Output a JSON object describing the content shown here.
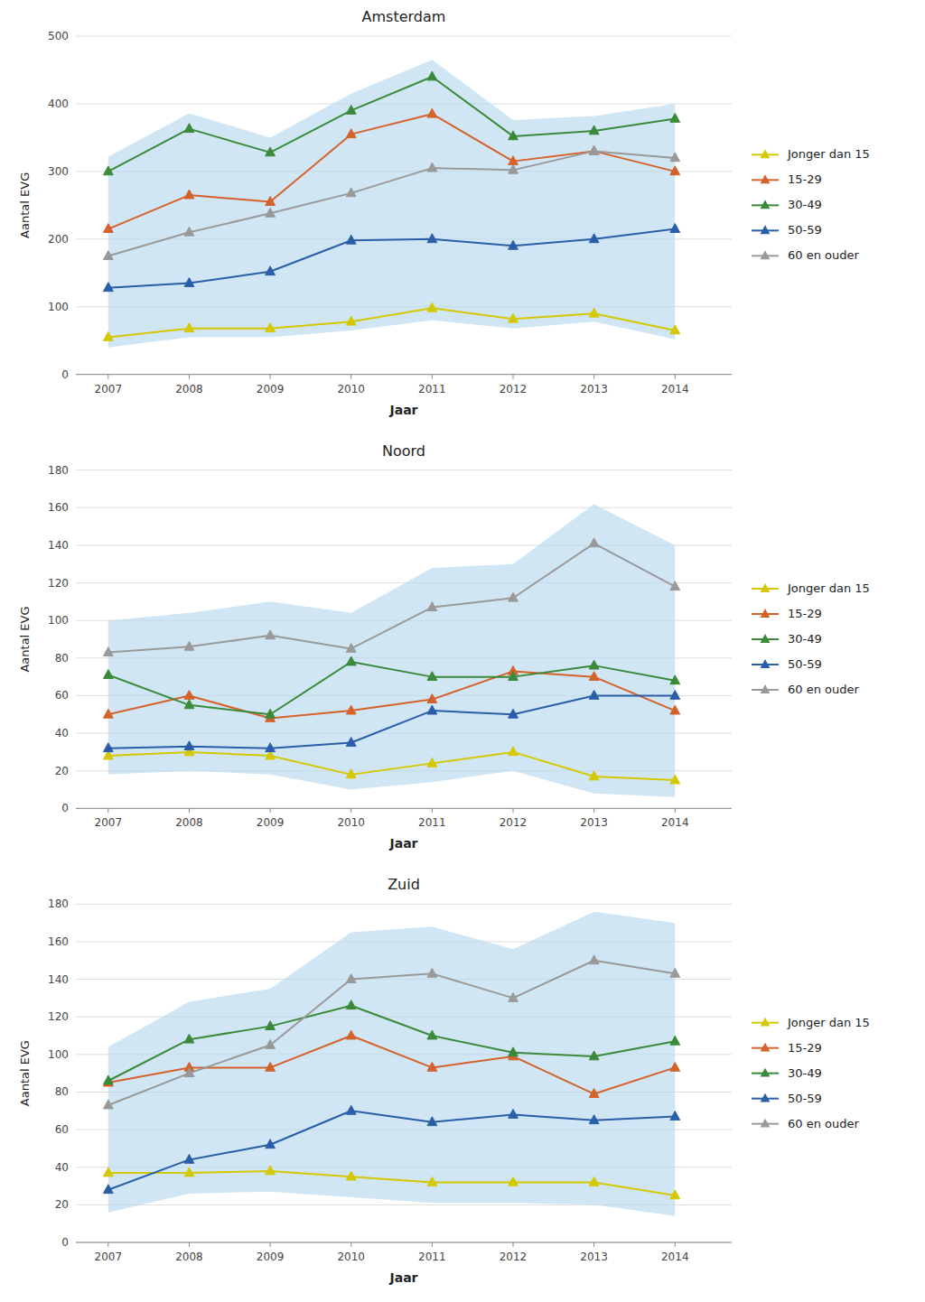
{
  "chart_data": [
    {
      "type": "line",
      "title": "Amsterdam",
      "xlabel": "Jaar",
      "ylabel": "Aantal EVG",
      "x": [
        2007,
        2008,
        2009,
        2010,
        2011,
        2012,
        2013,
        2014
      ],
      "xlim": [
        2006.6,
        2014.7
      ],
      "xticks": [
        2007,
        2008,
        2009,
        2010,
        2011,
        2012,
        2013,
        2014
      ],
      "ylim": [
        0,
        500
      ],
      "yticks": [
        0,
        100,
        200,
        300,
        400,
        500
      ],
      "grid": true,
      "legend": "right",
      "band": {
        "lower": [
          40,
          55,
          55,
          65,
          80,
          68,
          78,
          52
        ],
        "upper": [
          322,
          386,
          350,
          415,
          465,
          376,
          382,
          400
        ],
        "color": "#b8d8ee"
      },
      "series": [
        {
          "name": "Jonger dan 15",
          "color": "#d4c800",
          "marker": "triangle",
          "values": [
            55,
            68,
            68,
            78,
            98,
            82,
            90,
            65
          ]
        },
        {
          "name": "15-29",
          "color": "#d4622a",
          "marker": "triangle",
          "values": [
            215,
            265,
            255,
            355,
            385,
            315,
            330,
            300
          ]
        },
        {
          "name": "30-49",
          "color": "#3a8a3a",
          "marker": "triangle",
          "values": [
            300,
            363,
            328,
            390,
            440,
            352,
            360,
            378
          ]
        },
        {
          "name": "50-59",
          "color": "#2a5ea8",
          "marker": "triangle",
          "values": [
            128,
            135,
            152,
            198,
            200,
            190,
            200,
            215
          ]
        },
        {
          "name": "60 en ouder",
          "color": "#999999",
          "marker": "triangle",
          "values": [
            175,
            210,
            238,
            268,
            305,
            302,
            330,
            320
          ]
        }
      ]
    },
    {
      "type": "line",
      "title": "Noord",
      "xlabel": "Jaar",
      "ylabel": "Aantal EVG",
      "x": [
        2007,
        2008,
        2009,
        2010,
        2011,
        2012,
        2013,
        2014
      ],
      "xlim": [
        2006.6,
        2014.7
      ],
      "xticks": [
        2007,
        2008,
        2009,
        2010,
        2011,
        2012,
        2013,
        2014
      ],
      "ylim": [
        0,
        180
      ],
      "yticks": [
        0,
        20,
        40,
        60,
        80,
        100,
        120,
        140,
        160,
        180
      ],
      "grid": true,
      "legend": "right",
      "band": {
        "lower": [
          18,
          20,
          18,
          10,
          14,
          20,
          8,
          6
        ],
        "upper": [
          100,
          104,
          110,
          104,
          128,
          130,
          162,
          140
        ],
        "color": "#b8d8ee"
      },
      "series": [
        {
          "name": "Jonger dan 15",
          "color": "#d4c800",
          "marker": "triangle",
          "values": [
            28,
            30,
            28,
            18,
            24,
            30,
            17,
            15
          ]
        },
        {
          "name": "15-29",
          "color": "#d4622a",
          "marker": "triangle",
          "values": [
            50,
            60,
            48,
            52,
            58,
            73,
            70,
            52
          ]
        },
        {
          "name": "30-49",
          "color": "#3a8a3a",
          "marker": "triangle",
          "values": [
            71,
            55,
            50,
            78,
            70,
            70,
            76,
            68
          ]
        },
        {
          "name": "50-59",
          "color": "#2a5ea8",
          "marker": "triangle",
          "values": [
            32,
            33,
            32,
            35,
            52,
            50,
            60,
            60
          ]
        },
        {
          "name": "60 en ouder",
          "color": "#999999",
          "marker": "triangle",
          "values": [
            83,
            86,
            92,
            85,
            107,
            112,
            141,
            118
          ]
        }
      ]
    },
    {
      "type": "line",
      "title": "Zuid",
      "xlabel": "Jaar",
      "ylabel": "Aantal EVG",
      "x": [
        2007,
        2008,
        2009,
        2010,
        2011,
        2012,
        2013,
        2014
      ],
      "xlim": [
        2006.6,
        2014.7
      ],
      "xticks": [
        2007,
        2008,
        2009,
        2010,
        2011,
        2012,
        2013,
        2014
      ],
      "ylim": [
        0,
        180
      ],
      "yticks": [
        0,
        20,
        40,
        60,
        80,
        100,
        120,
        140,
        160,
        180
      ],
      "grid": true,
      "legend": "right",
      "band": {
        "lower": [
          16,
          26,
          27,
          24,
          21,
          21,
          20,
          14
        ],
        "upper": [
          104,
          128,
          135,
          165,
          168,
          156,
          176,
          170
        ],
        "color": "#b8d8ee"
      },
      "series": [
        {
          "name": "Jonger dan 15",
          "color": "#d4c800",
          "marker": "triangle",
          "values": [
            37,
            37,
            38,
            35,
            32,
            32,
            32,
            25
          ]
        },
        {
          "name": "15-29",
          "color": "#d4622a",
          "marker": "triangle",
          "values": [
            85,
            93,
            93,
            110,
            93,
            99,
            79,
            93
          ]
        },
        {
          "name": "30-49",
          "color": "#3a8a3a",
          "marker": "triangle",
          "values": [
            86,
            108,
            115,
            126,
            110,
            101,
            99,
            107
          ]
        },
        {
          "name": "50-59",
          "color": "#2a5ea8",
          "marker": "triangle",
          "values": [
            28,
            44,
            52,
            70,
            64,
            68,
            65,
            67
          ]
        },
        {
          "name": "60 en ouder",
          "color": "#999999",
          "marker": "triangle",
          "values": [
            73,
            90,
            105,
            140,
            143,
            130,
            150,
            143
          ]
        }
      ]
    }
  ]
}
